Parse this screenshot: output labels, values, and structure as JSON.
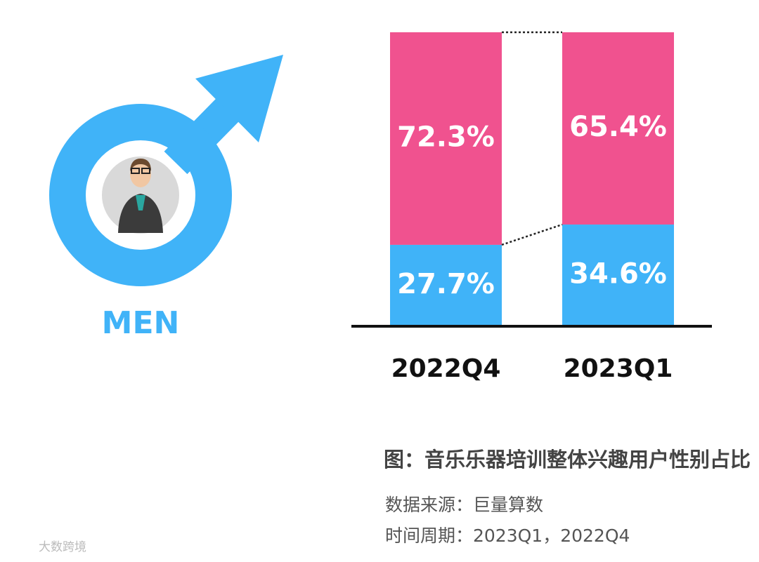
{
  "chart_data": {
    "type": "stacked_bar",
    "title": "图：音乐乐器培训整体兴趣用户性别占比",
    "source": "数据来源：巨量算数",
    "period": "时间周期：2023Q1，2022Q4",
    "watermark": "大数跨境",
    "categories": [
      "2022Q4",
      "2023Q1"
    ],
    "ylim": [
      0,
      100
    ],
    "series": [
      {
        "name": "MEN",
        "color": "#40b3f8",
        "values": [
          27.7,
          34.6
        ],
        "value_labels": [
          "27.7%",
          "34.6%"
        ]
      },
      {
        "color": "#f0528f",
        "values": [
          72.3,
          65.4
        ],
        "value_labels": [
          "72.3%",
          "65.4%"
        ]
      }
    ]
  }
}
